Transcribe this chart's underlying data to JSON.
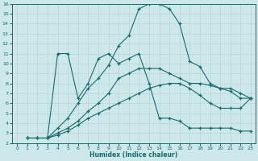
{
  "title": "",
  "xlabel": "Humidex (Indice chaleur)",
  "xlim": [
    -0.5,
    23.5
  ],
  "ylim": [
    2,
    16
  ],
  "xticks": [
    0,
    1,
    2,
    3,
    4,
    5,
    6,
    7,
    8,
    9,
    10,
    11,
    12,
    13,
    14,
    15,
    16,
    17,
    18,
    19,
    20,
    21,
    22,
    23
  ],
  "yticks": [
    2,
    3,
    4,
    5,
    6,
    7,
    8,
    9,
    10,
    11,
    12,
    13,
    14,
    15,
    16
  ],
  "bg_color": "#cce8ea",
  "line_color": "#1a6b6b",
  "lines": [
    {
      "x": [
        1,
        2,
        3,
        4,
        5,
        6,
        7,
        8,
        9,
        10,
        11,
        12,
        13,
        14,
        15,
        16,
        17,
        18,
        19,
        20,
        21,
        22,
        23
      ],
      "y": [
        2.5,
        2.5,
        2.5,
        3.5,
        4.5,
        6.0,
        7.5,
        8.5,
        9.8,
        11.8,
        12.8,
        15.5,
        16.0,
        16.0,
        15.5,
        14.0,
        10.2,
        9.7,
        8.0,
        7.5,
        7.2,
        6.5,
        6.5
      ]
    },
    {
      "x": [
        3,
        4,
        5,
        6,
        7,
        8,
        9,
        10,
        11,
        12,
        13,
        14,
        15,
        16,
        17,
        18,
        19,
        20,
        21,
        22,
        23
      ],
      "y": [
        2.5,
        11.0,
        11.0,
        6.5,
        8.0,
        10.5,
        11.0,
        10.0,
        10.5,
        11.0,
        8.0,
        4.5,
        4.5,
        4.2,
        3.5,
        3.5,
        3.5,
        3.5,
        3.5,
        3.2,
        3.2
      ]
    },
    {
      "x": [
        1,
        2,
        3,
        4,
        5,
        6,
        7,
        8,
        9,
        10,
        11,
        12,
        13,
        14,
        15,
        16,
        17,
        18,
        19,
        20,
        21,
        22,
        23
      ],
      "y": [
        2.5,
        2.5,
        2.5,
        3.0,
        3.5,
        4.2,
        5.2,
        6.0,
        7.0,
        8.5,
        9.0,
        9.5,
        9.5,
        9.5,
        9.0,
        8.5,
        8.0,
        8.0,
        7.8,
        7.5,
        7.5,
        7.0,
        6.5
      ]
    },
    {
      "x": [
        1,
        2,
        3,
        4,
        5,
        6,
        7,
        8,
        9,
        10,
        11,
        12,
        13,
        14,
        15,
        16,
        17,
        18,
        19,
        20,
        21,
        22,
        23
      ],
      "y": [
        2.5,
        2.5,
        2.5,
        2.8,
        3.2,
        3.8,
        4.5,
        5.0,
        5.5,
        6.0,
        6.5,
        7.0,
        7.5,
        7.8,
        8.0,
        8.0,
        7.5,
        6.8,
        6.0,
        5.5,
        5.5,
        5.5,
        6.5
      ]
    }
  ]
}
